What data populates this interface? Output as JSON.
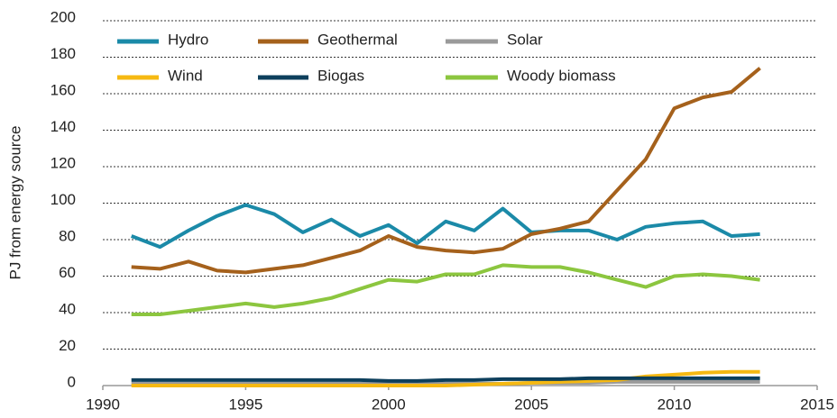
{
  "chart_data": {
    "type": "line",
    "y_label": "PJ from energy source",
    "x": [
      1991,
      1992,
      1993,
      1994,
      1995,
      1996,
      1997,
      1998,
      1999,
      2000,
      2001,
      2002,
      2003,
      2004,
      2005,
      2006,
      2007,
      2008,
      2009,
      2010,
      2011,
      2012,
      2013
    ],
    "series": [
      {
        "name": "Hydro",
        "color": "#1b8aa8",
        "values": [
          82,
          76,
          85,
          93,
          99,
          94,
          84,
          91,
          82,
          88,
          78,
          90,
          85,
          97,
          84,
          85,
          85,
          80,
          87,
          89,
          90,
          82,
          83
        ]
      },
      {
        "name": "Geothermal",
        "color": "#a5611c",
        "values": [
          65,
          64,
          68,
          63,
          62,
          64,
          66,
          70,
          74,
          82,
          76,
          74,
          73,
          75,
          83,
          86,
          90,
          107,
          124,
          152,
          158,
          161,
          174
        ]
      },
      {
        "name": "Solar",
        "color": "#9a9a9a",
        "values": [
          1,
          1,
          1,
          1,
          1,
          1,
          1,
          1,
          1,
          1,
          1,
          1,
          1,
          1,
          1.5,
          1.5,
          1.5,
          2,
          2,
          2,
          2,
          2,
          2
        ]
      },
      {
        "name": "Wind",
        "color": "#f6b912",
        "values": [
          0,
          0,
          0,
          0,
          0,
          0,
          0,
          0,
          0,
          0,
          0,
          0,
          0.5,
          1,
          1.5,
          2,
          2.5,
          3,
          5,
          6,
          7,
          7.5,
          7.5
        ]
      },
      {
        "name": "Biogas",
        "color": "#0d3f5c",
        "values": [
          3,
          3,
          3,
          3,
          3,
          3,
          3,
          3,
          3,
          2.5,
          2.5,
          3,
          3,
          3.5,
          3.5,
          3.5,
          4,
          4,
          4,
          4,
          4,
          4,
          4
        ]
      },
      {
        "name": "Woody biomass",
        "color": "#8cc63f",
        "values": [
          39,
          39,
          41,
          43,
          45,
          43,
          45,
          48,
          53,
          58,
          57,
          61,
          61,
          66,
          65,
          65,
          62,
          58,
          54,
          60,
          61,
          60,
          58
        ]
      }
    ],
    "xlim": [
      1990,
      2015
    ],
    "xticks": [
      1990,
      1995,
      2000,
      2005,
      2010,
      2015
    ],
    "ylim": [
      0,
      200
    ],
    "yticks": [
      0,
      20,
      40,
      60,
      80,
      100,
      120,
      140,
      160,
      180,
      200
    ],
    "grid": true,
    "legend": "top-left"
  }
}
